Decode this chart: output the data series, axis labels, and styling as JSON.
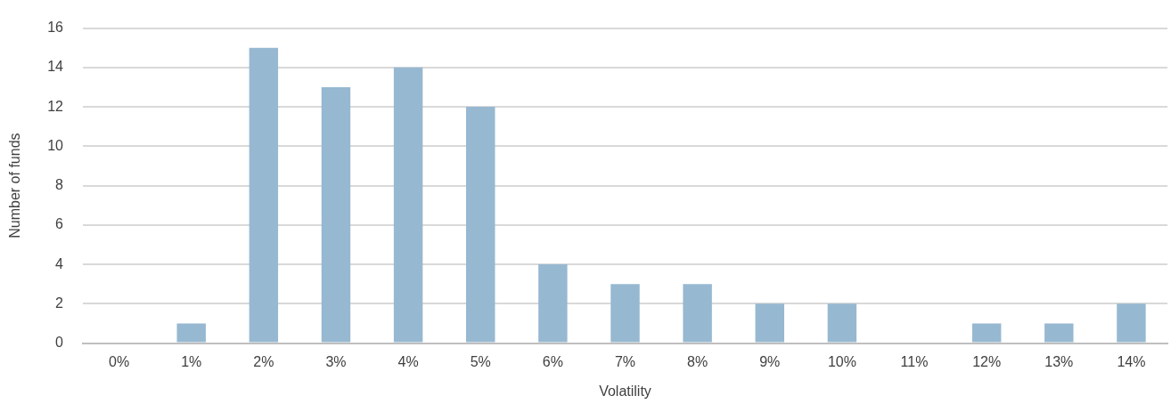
{
  "chart_data": {
    "type": "bar",
    "xlabel": "Volatility",
    "ylabel": "Number of funds",
    "categories": [
      "0%",
      "1%",
      "2%",
      "3%",
      "4%",
      "5%",
      "6%",
      "7%",
      "8%",
      "9%",
      "10%",
      "11%",
      "12%",
      "13%",
      "14%"
    ],
    "values": [
      0,
      1,
      15,
      13,
      14,
      12,
      4,
      3,
      3,
      2,
      2,
      0,
      1,
      1,
      2
    ],
    "color": "#97b8d1",
    "ylim": [
      0,
      16
    ],
    "yticks": [
      0,
      2,
      4,
      6,
      8,
      10,
      12,
      14,
      16
    ],
    "grid": "y",
    "legend": false
  }
}
